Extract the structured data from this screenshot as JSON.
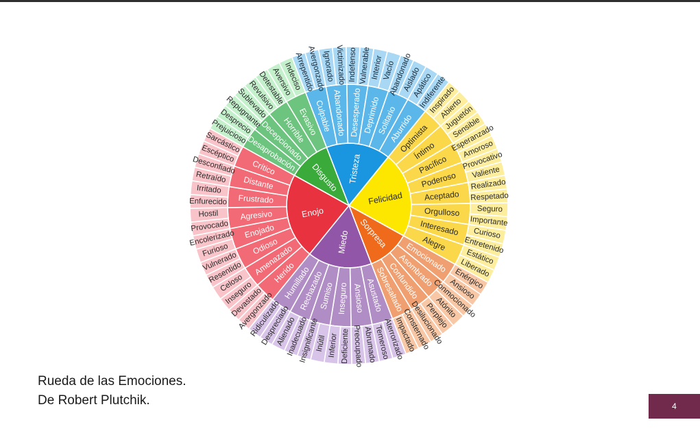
{
  "caption": {
    "line1": "Rueda de las Emociones.",
    "line2": "De Robert Plutchik."
  },
  "page_number": "4",
  "colors": {
    "top_bar": "#2f2f2f",
    "badge": "#722a4c",
    "divider": "#ffffff"
  },
  "wheel": {
    "categories": [
      {
        "name": "Enojo",
        "colors": [
          "#e8323f",
          "#f26a75",
          "#f9c4c9"
        ],
        "text": "#ffffff",
        "outer_text": "#2a2a2a",
        "secondary": [
          {
            "name": "Herido",
            "tertiary": [
              "Avergonzado",
              "Devastado"
            ]
          },
          {
            "name": "Amenazado",
            "tertiary": [
              "Inseguro",
              "Celoso"
            ]
          },
          {
            "name": "Odioso",
            "tertiary": [
              "Resentido",
              "Vulnerado"
            ]
          },
          {
            "name": "Enojado",
            "tertiary": [
              "Furioso",
              "Encolerizado"
            ]
          },
          {
            "name": "Agresivo",
            "tertiary": [
              "Provocado",
              "Hostil"
            ]
          },
          {
            "name": "Frustrado",
            "tertiary": [
              "Enfurecido",
              "Irritado"
            ]
          },
          {
            "name": "Distante",
            "tertiary": [
              "Retraído",
              "Desconfiado"
            ]
          },
          {
            "name": "Crítico",
            "tertiary": [
              "Escéptico",
              "Sarcástico"
            ]
          }
        ]
      },
      {
        "name": "Disgusto",
        "colors": [
          "#3aaa3a",
          "#6cc47e",
          "#c4f0cc"
        ],
        "text": "#ffffff",
        "outer_text": "#2a2a2a",
        "secondary": [
          {
            "name": "Desaprobación",
            "tertiary": [
              "Prejuicioso",
              "Desprecio"
            ]
          },
          {
            "name": "Decepcionado",
            "tertiary": [
              "Repugnante",
              "Sublevado"
            ]
          },
          {
            "name": "Horrible",
            "tertiary": [
              "Revulsivo",
              "Detestable"
            ]
          },
          {
            "name": "Evasivo",
            "tertiary": [
              "Aversivo",
              "Indeciso"
            ]
          }
        ]
      },
      {
        "name": "Tristeza",
        "colors": [
          "#1a96e0",
          "#5bb7ea",
          "#a8d8f4"
        ],
        "text": "#ffffff",
        "outer_text": "#1a2a3a",
        "secondary": [
          {
            "name": "Culpable",
            "tertiary": [
              "Arrepentido",
              "Avergonzado"
            ]
          },
          {
            "name": "Abandonado",
            "tertiary": [
              "Ignorado",
              "Victimizado"
            ]
          },
          {
            "name": "Desesperado",
            "tertiary": [
              "Indefenso",
              "Vulnerable"
            ]
          },
          {
            "name": "Deprimido",
            "tertiary": [
              "Interior",
              "Vacío"
            ]
          },
          {
            "name": "Solitario",
            "tertiary": [
              "Abandonado",
              "Aislado"
            ]
          },
          {
            "name": "Aburrido",
            "tertiary": [
              "Apático",
              "Indiferente"
            ]
          }
        ]
      },
      {
        "name": "Felicidad",
        "colors": [
          "#fde600",
          "#fbd84a",
          "#fdee9e"
        ],
        "text": "#2a2a2a",
        "outer_text": "#2a2a2a",
        "secondary": [
          {
            "name": "Optimista",
            "tertiary": [
              "Inspirado",
              "Abierto"
            ]
          },
          {
            "name": "Íntimo",
            "tertiary": [
              "Juguetón",
              "Sensible"
            ]
          },
          {
            "name": "Pacífico",
            "tertiary": [
              "Esperanzado",
              "Amoroso"
            ]
          },
          {
            "name": "Poderoso",
            "tertiary": [
              "Provocativo",
              "Valiente"
            ]
          },
          {
            "name": "Aceptado",
            "tertiary": [
              "Realizado",
              "Respetado"
            ]
          },
          {
            "name": "Orgulloso",
            "tertiary": [
              "Seguro",
              "Importante"
            ]
          },
          {
            "name": "Interesado",
            "tertiary": [
              "Curioso",
              "Entretenido"
            ]
          },
          {
            "name": "Alegre",
            "tertiary": [
              "Estático",
              "Liberado"
            ]
          }
        ]
      },
      {
        "name": "Sorpresa",
        "colors": [
          "#f06a1c",
          "#f0a070",
          "#f7c7a6"
        ],
        "text": "#ffffff",
        "outer_text": "#2a2a2a",
        "secondary": [
          {
            "name": "Emocionado",
            "tertiary": [
              "Enérgico",
              "Ansioso"
            ]
          },
          {
            "name": "Asombrado",
            "tertiary": [
              "Conmocionado",
              "Atónito"
            ]
          },
          {
            "name": "Confundido",
            "tertiary": [
              "Perplejo",
              "Desilucionado"
            ]
          },
          {
            "name": "Sobresaltado",
            "tertiary": [
              "Consternado",
              "Impactado"
            ]
          }
        ]
      },
      {
        "name": "Miedo",
        "colors": [
          "#9256a8",
          "#b08dc4",
          "#d8c4e8"
        ],
        "text": "#ffffff",
        "outer_text": "#2a2a2a",
        "secondary": [
          {
            "name": "Asustado",
            "tertiary": [
              "Aterrorizado",
              "Temeroso"
            ]
          },
          {
            "name": "Ansioso",
            "tertiary": [
              "Abrumado",
              "Preocupado"
            ]
          },
          {
            "name": "Inseguro",
            "tertiary": [
              "Deficiente",
              "Inferior"
            ]
          },
          {
            "name": "Sumiso",
            "tertiary": [
              "Inútil",
              "Insignificante"
            ]
          },
          {
            "name": "Rechazado",
            "tertiary": [
              "Inadecuado",
              "Alienado"
            ]
          },
          {
            "name": "Humillado",
            "tertiary": [
              "Despreciado",
              "Ridiculizado"
            ]
          }
        ]
      }
    ]
  }
}
